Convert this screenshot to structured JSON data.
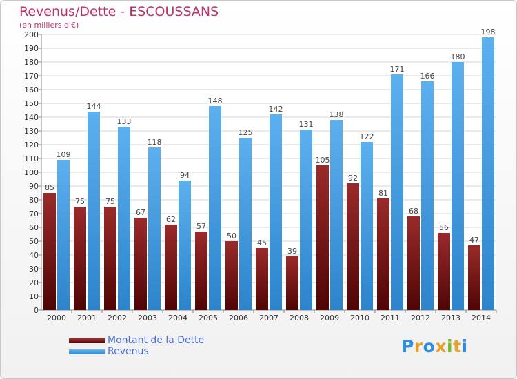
{
  "chart_data": {
    "type": "bar",
    "title": "Revenus/Dette - ESCOUSSANS",
    "subtitle": "(en milliers d'€)",
    "categories": [
      "2000",
      "2001",
      "2002",
      "2003",
      "2004",
      "2005",
      "2006",
      "2007",
      "2008",
      "2009",
      "2010",
      "2011",
      "2012",
      "2013",
      "2014"
    ],
    "series": [
      {
        "name": "Montant de la Dette",
        "color": "#7a1111",
        "values": [
          85,
          75,
          75,
          67,
          62,
          57,
          50,
          45,
          39,
          105,
          92,
          81,
          68,
          56,
          47
        ]
      },
      {
        "name": "Revenus",
        "color": "#4aa3e6",
        "values": [
          109,
          144,
          133,
          118,
          94,
          148,
          125,
          142,
          131,
          138,
          122,
          171,
          166,
          180,
          198
        ]
      }
    ],
    "ylim": [
      0,
      200
    ],
    "ytick_step": 10,
    "grid": true,
    "legend_position": "bottom-left"
  },
  "logo_text": "Proxiti"
}
